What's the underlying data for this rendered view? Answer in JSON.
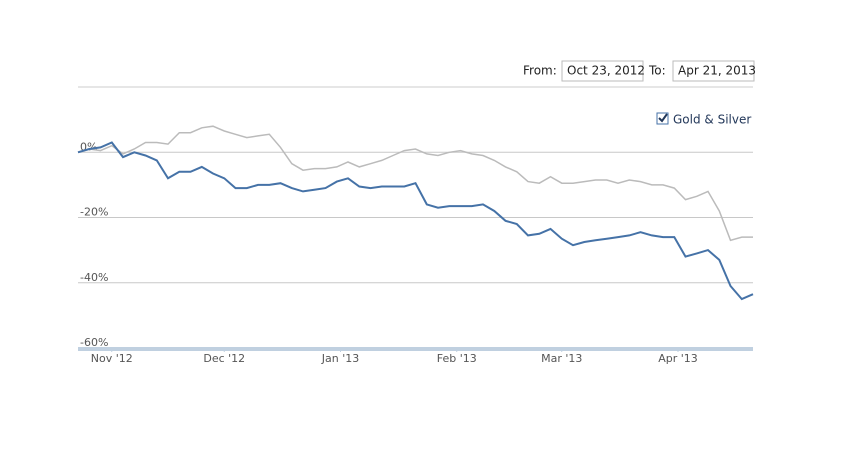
{
  "controls": {
    "from_label": "From:",
    "from_value": "Oct 23, 2012",
    "to_label": "To:",
    "to_value": "Apr 21, 2013"
  },
  "chart_data": {
    "type": "line",
    "xlim": [
      "2012-10-23",
      "2013-04-21"
    ],
    "xticks": [
      {
        "value": "2012-11",
        "label": "Nov '12"
      },
      {
        "value": "2012-12",
        "label": "Dec '12"
      },
      {
        "value": "2013-01",
        "label": "Jan '13"
      },
      {
        "value": "2013-02",
        "label": "Feb '13"
      },
      {
        "value": "2013-03",
        "label": "Mar '13"
      },
      {
        "value": "2013-04",
        "label": "Apr '13"
      }
    ],
    "ylim": [
      -60,
      20
    ],
    "yticks": [
      {
        "value": -60,
        "label": "-60%"
      },
      {
        "value": -40,
        "label": "-40%"
      },
      {
        "value": -20,
        "label": "-20%"
      },
      {
        "value": 0,
        "label": "0%"
      }
    ],
    "grid": true,
    "series": [
      {
        "color": "#4572a7",
        "values": [
          0,
          1,
          1.5,
          3,
          -1.5,
          0,
          -1,
          -2.5,
          -8,
          -6,
          -6,
          -4.5,
          -6.5,
          -8,
          -11,
          -11,
          -10,
          -10,
          -9.5,
          -11,
          -12,
          -11.5,
          -11,
          -9,
          -8,
          -10.5,
          -11,
          -10.5,
          -10.5,
          -10.5,
          -9.5,
          -16,
          -17,
          -16.5,
          -16.5,
          -16.5,
          -16,
          -18,
          -21,
          -22,
          -25.5,
          -25,
          -23.5,
          -26.5,
          -28.5,
          -27.5,
          -27,
          -26.5,
          -26,
          -25.5,
          -24.5,
          -25.5,
          -26,
          -26,
          -32,
          -31,
          -30,
          -33,
          -41,
          -45,
          -43.5
        ]
      },
      {
        "name": "Gold & Silver",
        "color": "#bbbbbb",
        "values": [
          0,
          1,
          0.5,
          2,
          -0.5,
          1,
          3,
          3,
          2.5,
          6,
          6,
          7.5,
          8,
          6.5,
          5.5,
          4.5,
          5,
          5.5,
          1.5,
          -3.5,
          -5.5,
          -5,
          -5,
          -4.5,
          -3,
          -4.5,
          -3.5,
          -2.5,
          -1,
          0.5,
          1,
          -0.5,
          -1,
          0,
          0.5,
          -0.5,
          -1,
          -2.5,
          -4.5,
          -6,
          -9,
          -9.5,
          -7.5,
          -9.5,
          -9.5,
          -9,
          -8.5,
          -8.5,
          -9.5,
          -8.5,
          -9,
          -10,
          -10,
          -11,
          -14.5,
          -13.5,
          -12,
          -18,
          -27,
          -26,
          -26
        ]
      }
    ]
  }
}
